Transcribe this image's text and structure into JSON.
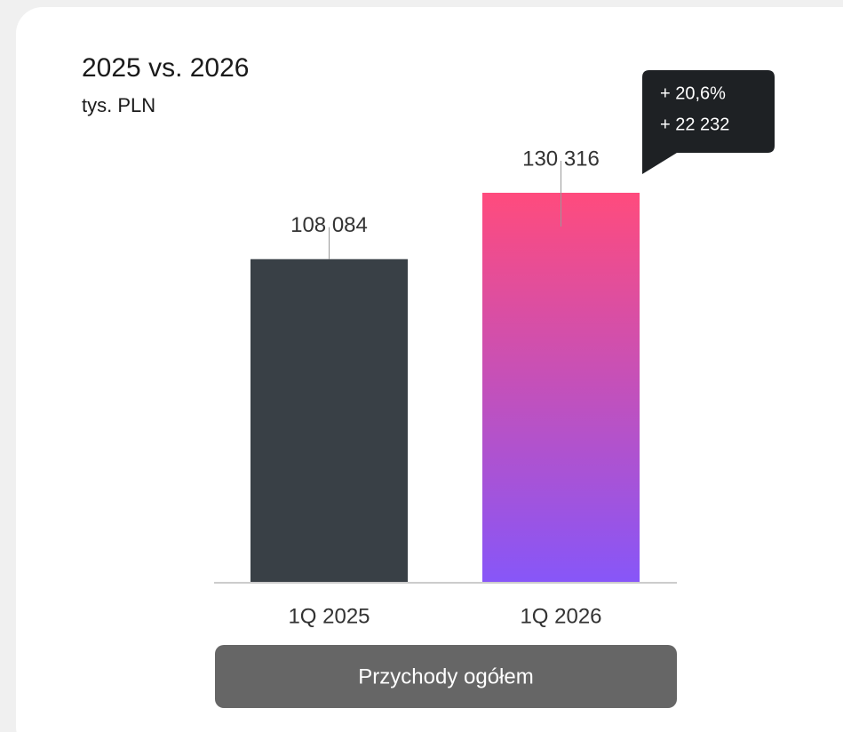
{
  "chart_data": {
    "type": "bar",
    "title": "2025 vs. 2026",
    "subtitle": "tys. PLN",
    "categories": [
      "1Q 2025",
      "1Q 2026"
    ],
    "values": [
      108084,
      130316
    ],
    "value_labels": [
      "108 084",
      "130 316"
    ],
    "bar_colors": [
      [
        "#394046",
        "#394046"
      ],
      [
        "#ff4b7d",
        "#8756f8"
      ]
    ],
    "annotations": [
      "+ 20,6%",
      "+ 22 232"
    ],
    "series_name": "Przychody ogółem"
  }
}
